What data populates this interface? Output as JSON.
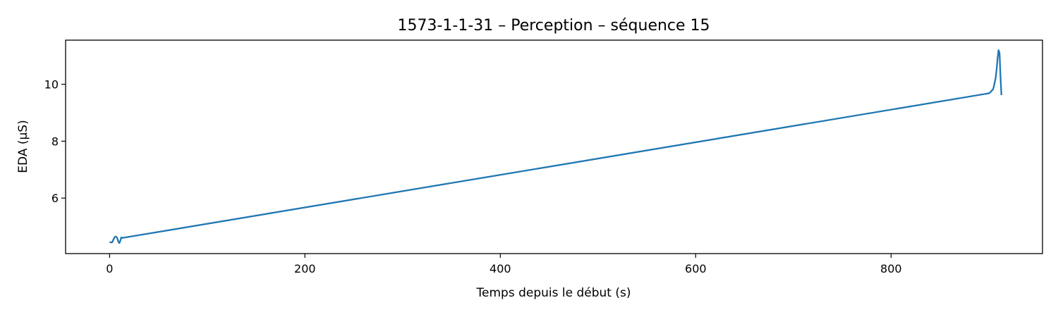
{
  "chart_data": {
    "type": "line",
    "title": "1573-1-1-31 – Perception – séquence 15",
    "xlabel": "Temps depuis le début (s)",
    "ylabel": "EDA (µS)",
    "xlim": [
      -45,
      955
    ],
    "ylim": [
      4.05,
      11.55
    ],
    "xticks": [
      0,
      200,
      400,
      600,
      800
    ],
    "yticks": [
      6,
      8,
      10
    ],
    "grid": false,
    "legend": "none",
    "series": [
      {
        "color": "#1f77b4",
        "points": [
          [
            0,
            4.45
          ],
          [
            1,
            4.45
          ],
          [
            2,
            4.44
          ],
          [
            3,
            4.46
          ],
          [
            4,
            4.55
          ],
          [
            5,
            4.62
          ],
          [
            6,
            4.65
          ],
          [
            7,
            4.64
          ],
          [
            8,
            4.58
          ],
          [
            9,
            4.47
          ],
          [
            10,
            4.42
          ],
          [
            11,
            4.5
          ],
          [
            12,
            4.62
          ],
          [
            13,
            4.6
          ],
          [
            900,
            9.68
          ],
          [
            901,
            9.7
          ],
          [
            902,
            9.73
          ],
          [
            903,
            9.78
          ],
          [
            904,
            9.8
          ],
          [
            905,
            9.9
          ],
          [
            906,
            10.05
          ],
          [
            907,
            10.2
          ],
          [
            908,
            10.5
          ],
          [
            909,
            10.9
          ],
          [
            910,
            11.2
          ],
          [
            911,
            11.1
          ],
          [
            912,
            10.3
          ],
          [
            913,
            9.62
          ]
        ]
      }
    ]
  }
}
